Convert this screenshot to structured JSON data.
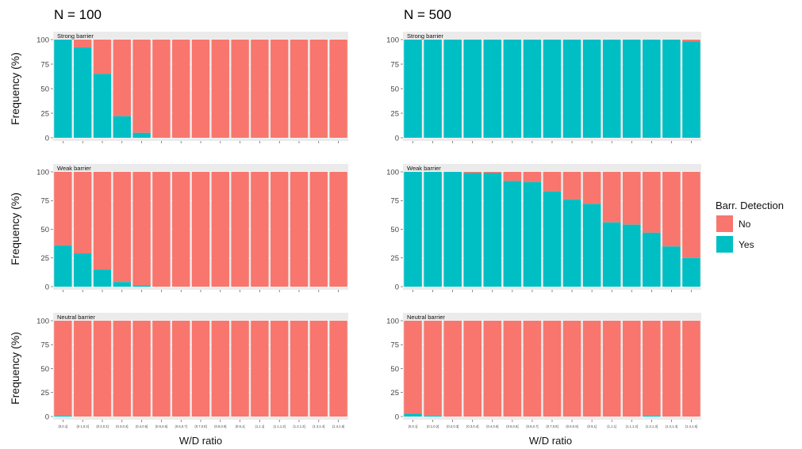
{
  "chart_data": {
    "type": "bar",
    "stacked": true,
    "percent": true,
    "columns": [
      "N = 100",
      "N = 500"
    ],
    "rows": [
      "Strong barrier",
      "Weak barrier",
      "Neutral barrier"
    ],
    "categories": [
      "(0,0.1]",
      "(0.1,0.2]",
      "(0.2,0.3]",
      "(0.3,0.4]",
      "(0.4,0.5]",
      "(0.5,0.6]",
      "(0.6,0.7]",
      "(0.7,0.8]",
      "(0.8,0.9]",
      "(0.9,1]",
      "(1,1.1]",
      "(1.1,1.2]",
      "(1.2,1.3]",
      "(1.3,1.4]",
      "(1.4,1.5]"
    ],
    "xlabel": "W/D ratio",
    "ylabel": "Frequency (%)",
    "ylim": [
      0,
      100
    ],
    "yticks": [
      0,
      25,
      50,
      75,
      100
    ],
    "legend": {
      "title": "Barr. Detection",
      "position": "right",
      "entries": [
        {
          "name": "No",
          "color": "#F8766D"
        },
        {
          "name": "Yes",
          "color": "#00BFC4"
        }
      ]
    },
    "panels": [
      {
        "column": "N = 100",
        "row": "Strong barrier",
        "yes_values": [
          100,
          92,
          65,
          22,
          5,
          0,
          0,
          0,
          0,
          0,
          0,
          0,
          0,
          0,
          0
        ]
      },
      {
        "column": "N = 500",
        "row": "Strong barrier",
        "yes_values": [
          100,
          100,
          100,
          100,
          100,
          100,
          100,
          100,
          100,
          100,
          100,
          100,
          100,
          100,
          98
        ]
      },
      {
        "column": "N = 100",
        "row": "Weak barrier",
        "yes_values": [
          36,
          29,
          15,
          4,
          1,
          0,
          0,
          0,
          0,
          0,
          0,
          0,
          0,
          0,
          0
        ]
      },
      {
        "column": "N = 500",
        "row": "Weak barrier",
        "yes_values": [
          100,
          100,
          100,
          99,
          99,
          92,
          91,
          83,
          76,
          72,
          56,
          54,
          47,
          35,
          25
        ]
      },
      {
        "column": "N = 100",
        "row": "Neutral barrier",
        "yes_values": [
          1,
          0,
          0,
          0,
          0,
          0,
          0,
          0,
          0,
          0,
          0,
          0,
          0,
          0,
          0
        ]
      },
      {
        "column": "N = 500",
        "row": "Neutral barrier",
        "yes_values": [
          3,
          1,
          0,
          0,
          0,
          0,
          0,
          0,
          0,
          0,
          0,
          0,
          1,
          0,
          0
        ]
      }
    ]
  }
}
